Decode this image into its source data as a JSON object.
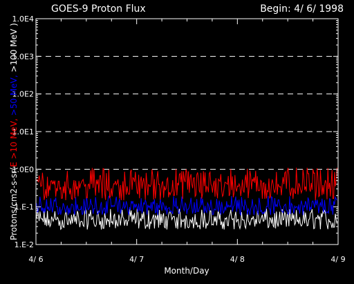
{
  "chart_data": {
    "type": "line",
    "title": "GOES-9 Proton Flux",
    "begin_label": "Begin: 4/ 6/ 1998",
    "xlabel": "Month/Day",
    "ylabel_parts": [
      {
        "text": "Protons/cm2-s-sr(",
        "color": "#ffffff"
      },
      {
        "text": "E >10 MeV, ",
        "color": "#ff0000"
      },
      {
        "text": ">50 MeV, ",
        "color": "#0000ff"
      },
      {
        "text": ">100 MeV )",
        "color": "#ffffff"
      }
    ],
    "y_scale": "log",
    "ylim": [
      0.01,
      10000
    ],
    "y_ticks": [
      {
        "value": 10000,
        "label": "1.0E4"
      },
      {
        "value": 1000,
        "label": "1.0E3"
      },
      {
        "value": 100,
        "label": "1.0E2"
      },
      {
        "value": 10,
        "label": "1.0E1"
      },
      {
        "value": 1,
        "label": "1.0E0"
      },
      {
        "value": 0.1,
        "label": "1.E-1"
      },
      {
        "value": 0.01,
        "label": "1.E-2"
      }
    ],
    "y_gridlines": [
      1000,
      100,
      10,
      1
    ],
    "x_ticks": [
      {
        "value": 0,
        "label": "4/ 6"
      },
      {
        "value": 1,
        "label": "4/ 7"
      },
      {
        "value": 2,
        "label": "4/ 8"
      },
      {
        "value": 3,
        "label": "4/ 9"
      }
    ],
    "xlim": [
      0,
      3
    ],
    "grid": "dashed horizontal",
    "series": [
      {
        "color": "#ffffff",
        "typical": 0.045,
        "low": 0.025,
        "high": 0.09
      },
      {
        "color": "#0000ff",
        "typical": 0.1,
        "low": 0.06,
        "high": 0.2
      },
      {
        "color": "#ff0000",
        "typical": 0.4,
        "low": 0.15,
        "high": 1.1
      }
    ]
  }
}
